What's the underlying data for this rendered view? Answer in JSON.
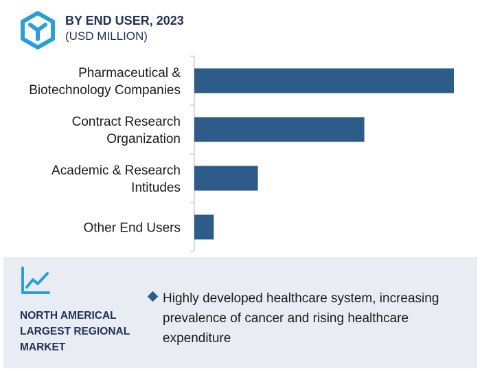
{
  "header": {
    "title": "BY END USER, 2023",
    "subtitle": "(USD MILLION)"
  },
  "colors": {
    "bar": "#2e5c8a",
    "accent": "#2a9fd6",
    "heading": "#1f2f5a",
    "footer_bg": "#e9edf3"
  },
  "icons": {
    "logo": "hexagon-logo-icon",
    "trend": "line-chart-icon",
    "bullet": "diamond-bullet-icon"
  },
  "chart_data": {
    "type": "bar",
    "orientation": "horizontal",
    "title": "BY END USER, 2023",
    "subtitle": "(USD MILLION)",
    "categories": [
      [
        "Pharmaceutical &",
        "Biotechnology Companies"
      ],
      [
        "Contract Research",
        "Organization"
      ],
      [
        "Academic & Research",
        "Intitudes"
      ],
      [
        "Other End Users"
      ]
    ],
    "values": [
      100,
      65.5,
      24.5,
      7.5
    ],
    "xlim": [
      0,
      100
    ],
    "grid": false,
    "legend": "none"
  },
  "footer": {
    "region_label": "NORTH AMERICAL LARGEST REGIONAL MARKET",
    "bullet_text": "Highly developed healthcare system, increasing prevalence of cancer and rising healthcare expenditure"
  }
}
